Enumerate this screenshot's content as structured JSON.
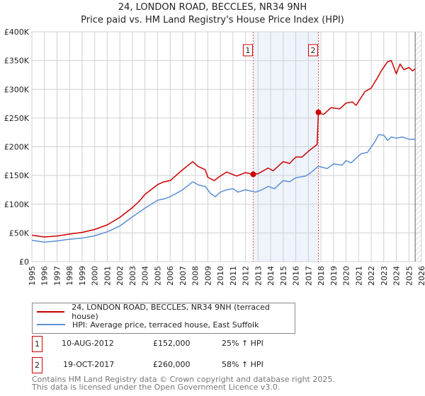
{
  "title": "24, LONDON ROAD, BECCLES, NR34 9NH",
  "subtitle": "Price paid vs. HM Land Registry's House Price Index (HPI)",
  "chart_data": {
    "type": "line",
    "xlim": [
      1995,
      2026
    ],
    "ylim": [
      0,
      400000
    ],
    "yticks": [
      0,
      50000,
      100000,
      150000,
      200000,
      250000,
      300000,
      350000,
      400000
    ],
    "ytick_labels": [
      "£0",
      "£50K",
      "£100K",
      "£150K",
      "£200K",
      "£250K",
      "£300K",
      "£350K",
      "£400K"
    ],
    "xticks": [
      1995,
      1996,
      1997,
      1998,
      1999,
      2000,
      2001,
      2002,
      2003,
      2004,
      2005,
      2006,
      2007,
      2008,
      2009,
      2010,
      2011,
      2012,
      2013,
      2014,
      2015,
      2016,
      2017,
      2018,
      2019,
      2020,
      2021,
      2022,
      2023,
      2024,
      2025,
      2026
    ],
    "grid": true,
    "forecast_hatch_from": 2025.5,
    "shaded_range": [
      2012.61,
      2017.8
    ],
    "colors": {
      "property": "#cc0000",
      "hpi": "#5b8fd4",
      "shade": "#eef3fc"
    },
    "series": [
      {
        "name": "24, LONDON ROAD, BECCLES, NR34 9NH (terraced house)",
        "color": "#cc0000",
        "x": [
          1995,
          1996,
          1997,
          1998,
          1999,
          2000,
          2001,
          2002,
          2003,
          2003.5,
          2004,
          2005,
          2005.5,
          2006,
          2007,
          2007.8,
          2008.2,
          2008.8,
          2009,
          2009.5,
          2010,
          2010.5,
          2011.3,
          2012,
          2012.61,
          2013,
          2013.8,
          2014.2,
          2015,
          2015.5,
          2016,
          2016.5,
          2017,
          2017.7,
          2017.8,
          2018.2,
          2018.8,
          2019.5,
          2020,
          2020.5,
          2020.8,
          2021.5,
          2022,
          2022.5,
          2022.8,
          2023.3,
          2023.6,
          2024,
          2024.3,
          2024.6,
          2025,
          2025.3,
          2025.5
        ],
        "y": [
          46000,
          43000,
          44500,
          48000,
          51000,
          56000,
          64000,
          77000,
          94000,
          104000,
          117000,
          134000,
          139000,
          141000,
          160000,
          174000,
          166000,
          160000,
          147000,
          141000,
          149000,
          156000,
          149000,
          155000,
          152000,
          153000,
          163000,
          158000,
          174000,
          171000,
          182000,
          182000,
          192000,
          204000,
          260000,
          256000,
          268000,
          266000,
          276000,
          278000,
          272000,
          296000,
          302000,
          320000,
          332000,
          348000,
          350000,
          327000,
          344000,
          334000,
          338000,
          332000,
          336000
        ]
      },
      {
        "name": "HPI: Average price, terraced house, East Suffolk",
        "color": "#5b8fd4",
        "x": [
          1995,
          1996,
          1997,
          1998,
          1999,
          2000,
          2001,
          2002,
          2003,
          2004,
          2005,
          2005.5,
          2006,
          2007,
          2007.8,
          2008.3,
          2008.8,
          2009.2,
          2009.6,
          2010,
          2010.5,
          2011,
          2011.4,
          2012,
          2012.8,
          2013.3,
          2013.8,
          2014.3,
          2015,
          2015.5,
          2016,
          2016.8,
          2017.2,
          2017.8,
          2018.5,
          2019,
          2019.7,
          2020,
          2020.4,
          2021.2,
          2021.7,
          2022.3,
          2022.6,
          2023,
          2023.3,
          2023.6,
          2024,
          2024.5,
          2025,
          2025.5
        ],
        "y": [
          37000,
          34000,
          36000,
          39000,
          41000,
          45000,
          52000,
          62000,
          78000,
          93000,
          107000,
          109000,
          113000,
          125000,
          139000,
          133000,
          131000,
          119000,
          113000,
          121000,
          125000,
          127000,
          121000,
          125000,
          121000,
          125000,
          131000,
          127000,
          141000,
          139000,
          146000,
          149000,
          155000,
          166000,
          162000,
          170000,
          168000,
          176000,
          172000,
          188000,
          190000,
          209000,
          221000,
          220000,
          211000,
          217000,
          215000,
          217000,
          213000,
          213000
        ]
      }
    ],
    "markers": [
      {
        "label": "1",
        "x": 2012.61,
        "y": 152000
      },
      {
        "label": "2",
        "x": 2017.8,
        "y": 260000
      }
    ]
  },
  "transactions": [
    {
      "num": "1",
      "date": "10-AUG-2012",
      "price": "£152,000",
      "hpi": "25% ↑ HPI"
    },
    {
      "num": "2",
      "date": "19-OCT-2017",
      "price": "£260,000",
      "hpi": "58% ↑ HPI"
    }
  ],
  "footer": {
    "line1": "Contains HM Land Registry data © Crown copyright and database right 2025.",
    "line2": "This data is licensed under the Open Government Licence v3.0."
  }
}
